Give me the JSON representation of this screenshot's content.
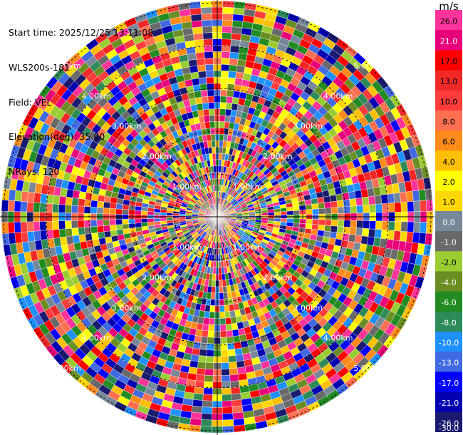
{
  "header": {
    "start_time": "Start time: 2025/12/25 13:11:08",
    "instrument": "WLS200s-181",
    "field": "Field: VEL",
    "elevation": "Elevation(deg): 35.00",
    "nrays": "NRays: 120"
  },
  "colorbar": {
    "unit": "m/s",
    "ticks": [
      "26.0",
      "21.0",
      "17.0",
      "13.0",
      "10.0",
      "8.0",
      "6.0",
      "4.0",
      "2.0",
      "1.0",
      "0.0",
      "-1.0",
      "-2.0",
      "-4.0",
      "-6.0",
      "-8.0",
      "-10.0",
      "-13.0",
      "-17.0",
      "-21.0",
      "-26.0",
      "-30.0"
    ],
    "bins": [
      {
        "label": "26.0",
        "color": "#ff3399"
      },
      {
        "label": "21.0",
        "color": "#e8007a"
      },
      {
        "label": "17.0",
        "color": "#ff0000"
      },
      {
        "label": "13.0",
        "color": "#f02828"
      },
      {
        "label": "10.0",
        "color": "#ff3c3c"
      },
      {
        "label": "8.0",
        "color": "#ff6f50"
      },
      {
        "label": "6.0",
        "color": "#ff8c1a"
      },
      {
        "label": "4.0",
        "color": "#ffc000"
      },
      {
        "label": "2.0",
        "color": "#ffff00"
      },
      {
        "label": "1.0",
        "color": "#ffd700"
      },
      {
        "label": "0.0",
        "color": "#778899"
      },
      {
        "label": "-1.0",
        "color": "#696969"
      },
      {
        "label": "-2.0",
        "color": "#9acd32"
      },
      {
        "label": "-4.0",
        "color": "#6b8e23"
      },
      {
        "label": "-6.0",
        "color": "#228b22"
      },
      {
        "label": "-8.0",
        "color": "#2e8b57"
      },
      {
        "label": "-10.0",
        "color": "#1e90ff"
      },
      {
        "label": "-13.0",
        "color": "#4169e1"
      },
      {
        "label": "-17.0",
        "color": "#0000ff"
      },
      {
        "label": "-21.0",
        "color": "#0000b0"
      },
      {
        "label": "-26.0",
        "color": "#1a1a6e"
      }
    ]
  },
  "chart_data": {
    "type": "heatmap",
    "projection": "polar-ppi",
    "field": "VEL",
    "unit": "m/s",
    "nrays": 120,
    "range_rings_km": [
      1.0,
      2.0,
      3.0,
      4.0,
      5.0
    ],
    "range_ring_labels": [
      "1.00km",
      "2.00km",
      "3.00km",
      "4.00km",
      "5.00km"
    ],
    "vmin": -30.0,
    "vmax": 26.0
  }
}
